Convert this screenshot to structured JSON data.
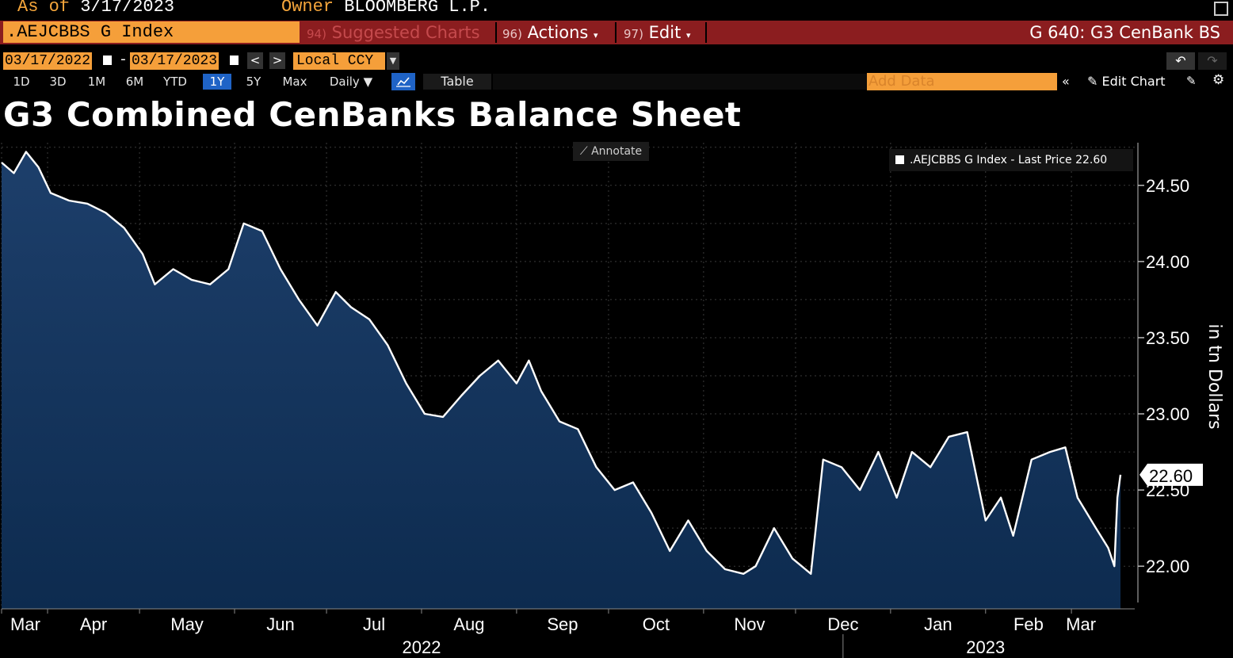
{
  "header": {
    "as_of_label": "As of",
    "as_of_value": "3/17/2023",
    "owner_label": "Owner",
    "owner_value": "BLOOMBERG L.P."
  },
  "toolbar": {
    "ticker": ".AEJCBBS G Index",
    "suggested_num": "94)",
    "suggested_label": "Suggested Charts",
    "actions_num": "96)",
    "actions_label": "Actions",
    "edit_num": "97)",
    "edit_label": "Edit",
    "page_code": "G 640: G3 CenBank BS"
  },
  "controls": {
    "start_date": "03/17/2022",
    "date_dash": "-",
    "end_date": "03/17/2023",
    "prev": "<",
    "next": ">",
    "currency": "Local CCY",
    "periods": [
      "1D",
      "3D",
      "1M",
      "6M",
      "YTD",
      "1Y",
      "5Y",
      "Max"
    ],
    "active_period": "1Y",
    "frequency": "Daily ▼",
    "table_label": "Table",
    "add_data_placeholder": "Add Data",
    "edit_chart_label": "Edit Chart"
  },
  "colors": {
    "accent_orange": "#f59f3a",
    "header_red": "#8b1d1f",
    "active_blue": "#1f63c6",
    "series_line": "#ffffff",
    "series_fill": "#0d2b4f"
  },
  "chart_data": {
    "type": "area",
    "title": "G3 Combined CenBanks Balance Sheet",
    "ylabel": "in tn Dollars",
    "ylim": [
      21.72,
      24.78
    ],
    "yticks": [
      "24.50",
      "24.00",
      "23.50",
      "23.00",
      "22.50",
      "22.00"
    ],
    "ytick_values": [
      24.5,
      24.0,
      23.5,
      23.0,
      22.5,
      22.0
    ],
    "x_range": [
      "2022-03-17",
      "2023-03-17"
    ],
    "month_labels": [
      {
        "label": "Mar",
        "date": "2022-03-17"
      },
      {
        "label": "Apr",
        "date": "2022-04-01"
      },
      {
        "label": "May",
        "date": "2022-05-01"
      },
      {
        "label": "Jun",
        "date": "2022-06-01"
      },
      {
        "label": "Jul",
        "date": "2022-07-01"
      },
      {
        "label": "Aug",
        "date": "2022-08-01"
      },
      {
        "label": "Sep",
        "date": "2022-09-01"
      },
      {
        "label": "Oct",
        "date": "2022-10-01"
      },
      {
        "label": "Nov",
        "date": "2022-11-01"
      },
      {
        "label": "Dec",
        "date": "2022-12-01"
      },
      {
        "label": "Jan",
        "date": "2023-01-01"
      },
      {
        "label": "Feb",
        "date": "2023-02-01"
      },
      {
        "label": "Mar",
        "date": "2023-03-01"
      }
    ],
    "year_labels": [
      {
        "label": "2022",
        "date": "2022-08-01"
      },
      {
        "label": "2023",
        "date": "2023-02-01"
      }
    ],
    "year_divider_date": "2023-01-01",
    "series": [
      {
        "name": ".AEJCBBS G Index",
        "legend": ".AEJCBBS G Index - Last Price 22.60",
        "last_value": "22.60",
        "points": [
          [
            "2022-03-17",
            24.65
          ],
          [
            "2022-03-21",
            24.58
          ],
          [
            "2022-03-25",
            24.72
          ],
          [
            "2022-03-29",
            24.62
          ],
          [
            "2022-04-02",
            24.45
          ],
          [
            "2022-04-08",
            24.4
          ],
          [
            "2022-04-14",
            24.38
          ],
          [
            "2022-04-20",
            24.32
          ],
          [
            "2022-04-26",
            24.22
          ],
          [
            "2022-05-02",
            24.05
          ],
          [
            "2022-05-06",
            23.85
          ],
          [
            "2022-05-12",
            23.95
          ],
          [
            "2022-05-18",
            23.88
          ],
          [
            "2022-05-24",
            23.85
          ],
          [
            "2022-05-30",
            23.95
          ],
          [
            "2022-06-04",
            24.25
          ],
          [
            "2022-06-10",
            24.2
          ],
          [
            "2022-06-16",
            23.95
          ],
          [
            "2022-06-22",
            23.75
          ],
          [
            "2022-06-28",
            23.58
          ],
          [
            "2022-07-04",
            23.8
          ],
          [
            "2022-07-09",
            23.7
          ],
          [
            "2022-07-15",
            23.62
          ],
          [
            "2022-07-21",
            23.45
          ],
          [
            "2022-07-27",
            23.2
          ],
          [
            "2022-08-02",
            23.0
          ],
          [
            "2022-08-08",
            22.98
          ],
          [
            "2022-08-14",
            23.12
          ],
          [
            "2022-08-20",
            23.25
          ],
          [
            "2022-08-26",
            23.35
          ],
          [
            "2022-09-01",
            23.2
          ],
          [
            "2022-09-05",
            23.35
          ],
          [
            "2022-09-09",
            23.15
          ],
          [
            "2022-09-15",
            22.95
          ],
          [
            "2022-09-21",
            22.9
          ],
          [
            "2022-09-27",
            22.65
          ],
          [
            "2022-10-03",
            22.5
          ],
          [
            "2022-10-09",
            22.55
          ],
          [
            "2022-10-15",
            22.35
          ],
          [
            "2022-10-21",
            22.1
          ],
          [
            "2022-10-27",
            22.3
          ],
          [
            "2022-11-02",
            22.1
          ],
          [
            "2022-11-08",
            21.98
          ],
          [
            "2022-11-14",
            21.95
          ],
          [
            "2022-11-18",
            22.0
          ],
          [
            "2022-11-24",
            22.25
          ],
          [
            "2022-11-30",
            22.05
          ],
          [
            "2022-12-06",
            21.95
          ],
          [
            "2022-12-10",
            22.7
          ],
          [
            "2022-12-16",
            22.65
          ],
          [
            "2022-12-22",
            22.5
          ],
          [
            "2022-12-28",
            22.75
          ],
          [
            "2023-01-03",
            22.45
          ],
          [
            "2023-01-08",
            22.75
          ],
          [
            "2023-01-14",
            22.65
          ],
          [
            "2023-01-20",
            22.85
          ],
          [
            "2023-01-26",
            22.88
          ],
          [
            "2023-02-01",
            22.3
          ],
          [
            "2023-02-06",
            22.45
          ],
          [
            "2023-02-10",
            22.2
          ],
          [
            "2023-02-16",
            22.7
          ],
          [
            "2023-02-22",
            22.75
          ],
          [
            "2023-02-27",
            22.78
          ],
          [
            "2023-03-03",
            22.45
          ],
          [
            "2023-03-09",
            22.25
          ],
          [
            "2023-03-13",
            22.12
          ],
          [
            "2023-03-15",
            22.0
          ],
          [
            "2023-03-16",
            22.45
          ],
          [
            "2023-03-17",
            22.6
          ]
        ]
      }
    ],
    "grid": true,
    "legend_position": "top-right",
    "annotate_label": "Annotate"
  }
}
